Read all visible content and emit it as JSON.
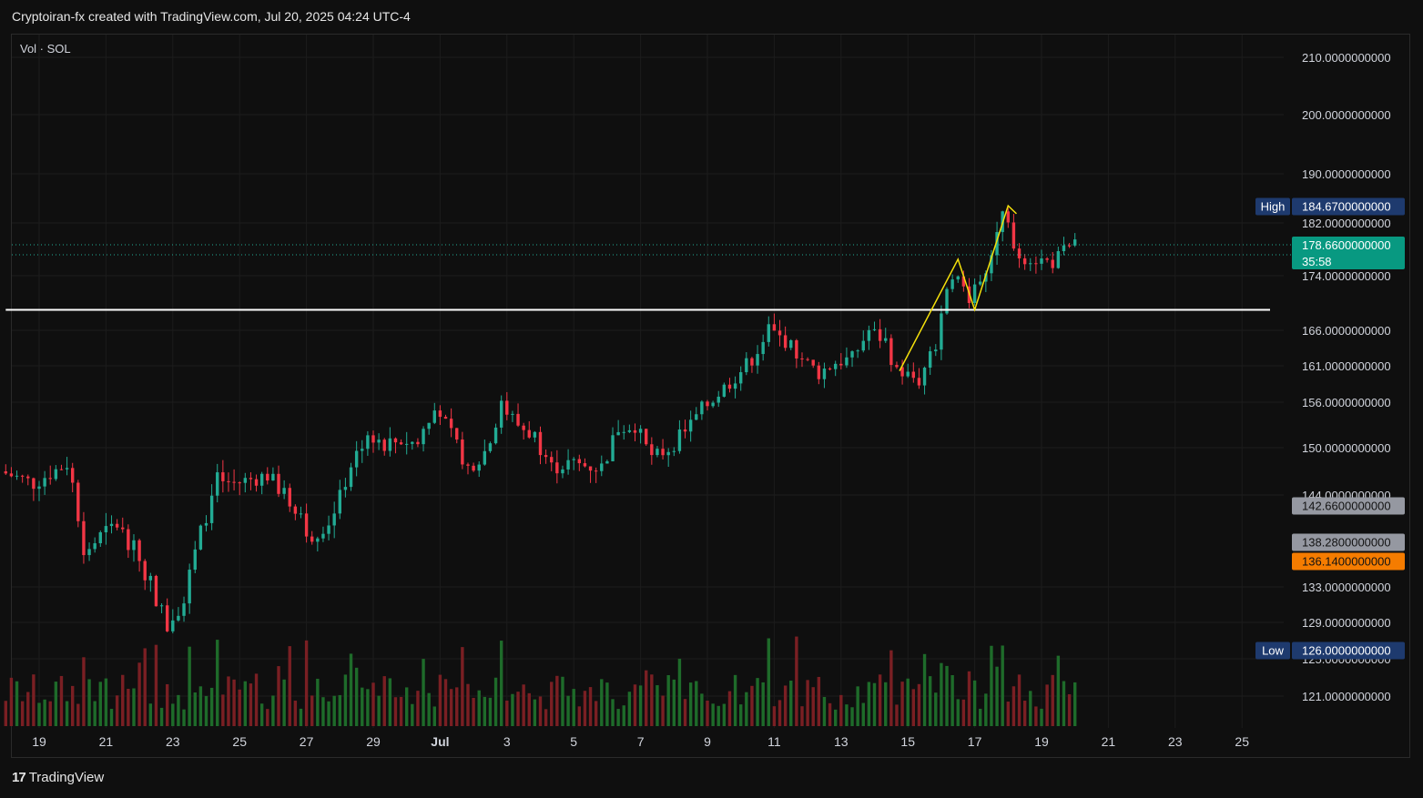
{
  "header": {
    "attribution": "Cryptoiran-fx created with TradingView.com, Jul 20, 2025 04:24 UTC-4"
  },
  "legend": {
    "label": "Vol · SOL"
  },
  "footer": {
    "brand": "TradingView"
  },
  "colors": {
    "up": "#22ab94",
    "down": "#f23645",
    "vol_up": "#1e6b2a",
    "vol_down": "#7a1f23",
    "annotation": "#f5e10b",
    "hline": "#ffffff",
    "price_tag": "#089981",
    "high_low_tag": "#1e3a6e",
    "grey_tag": "#9598a1",
    "orange_tag": "#f57c00"
  },
  "chart_data": {
    "type": "candlestick",
    "y_tick_labels": [
      "210.0000000000",
      "200.0000000000",
      "190.0000000000",
      "182.0000000000",
      "174.0000000000",
      "166.0000000000",
      "161.0000000000",
      "156.0000000000",
      "150.0000000000",
      "144.0000000000",
      "133.0000000000",
      "129.0000000000",
      "125.0000000000",
      "121.0000000000"
    ],
    "y_tick_values": [
      210,
      200,
      190,
      182,
      174,
      166,
      161,
      156,
      150,
      144,
      133,
      129,
      125,
      121
    ],
    "x_tick_labels": [
      "19",
      "21",
      "23",
      "25",
      "27",
      "29",
      "Jul",
      "3",
      "5",
      "7",
      "9",
      "11",
      "13",
      "15",
      "17",
      "19",
      "21",
      "23",
      "25"
    ],
    "x_tick_dates": [
      "2025-06-19",
      "2025-06-21",
      "2025-06-23",
      "2025-06-25",
      "2025-06-27",
      "2025-06-29",
      "2025-07-01",
      "2025-07-03",
      "2025-07-05",
      "2025-07-07",
      "2025-07-09",
      "2025-07-11",
      "2025-07-13",
      "2025-07-15",
      "2025-07-17",
      "2025-07-19",
      "2025-07-21",
      "2025-07-23",
      "2025-07-25"
    ],
    "price_tags": [
      {
        "label": "High",
        "value": "184.6700000000",
        "kind": "high"
      },
      {
        "label": "",
        "value": "178.6600000000",
        "kind": "last",
        "countdown": "35:58"
      },
      {
        "label": "",
        "value": "142.6600000000",
        "kind": "grey"
      },
      {
        "label": "",
        "value": "138.2800000000",
        "kind": "grey"
      },
      {
        "label": "",
        "value": "136.1400000000",
        "kind": "orange"
      },
      {
        "label": "Low",
        "value": "126.0000000000",
        "kind": "low"
      }
    ],
    "horizontal_line": {
      "value": 169.0,
      "from": "2025-06-18",
      "to": "2025-07-26"
    },
    "annotation_path": [
      [
        "2025-07-14T18:00",
        160.3
      ],
      [
        "2025-07-16T12:00",
        176.5
      ],
      [
        "2025-07-17T00:00",
        169.0
      ],
      [
        "2025-07-18T00:00",
        184.8
      ],
      [
        "2025-07-18T06:00",
        183.5
      ]
    ],
    "ohlc_anchors": [
      [
        "2025-06-18",
        147.0
      ],
      [
        "2025-06-19",
        145.5
      ],
      [
        "2025-06-20",
        148.0
      ],
      [
        "2025-06-20T06:00",
        144.0
      ],
      [
        "2025-06-20T12:00",
        137.0
      ],
      [
        "2025-06-21",
        139.0
      ],
      [
        "2025-06-21T12:00",
        140.5
      ],
      [
        "2025-06-22",
        137.5
      ],
      [
        "2025-06-22T12:00",
        133.5
      ],
      [
        "2025-06-23",
        128.5
      ],
      [
        "2025-06-23T12:00",
        132.0
      ],
      [
        "2025-06-24",
        139.5
      ],
      [
        "2025-06-24T12:00",
        146.0
      ],
      [
        "2025-06-25",
        145.5
      ],
      [
        "2025-06-26",
        146.5
      ],
      [
        "2025-06-26T12:00",
        144.0
      ],
      [
        "2025-06-27",
        142.0
      ],
      [
        "2025-06-27T06:00",
        139.0
      ],
      [
        "2025-06-28",
        141.5
      ],
      [
        "2025-06-28T12:00",
        148.0
      ],
      [
        "2025-06-29",
        152.0
      ],
      [
        "2025-06-29T12:00",
        150.5
      ],
      [
        "2025-06-30",
        151.0
      ],
      [
        "2025-06-30T12:00",
        150.5
      ],
      [
        "2025-07-01",
        156.0
      ],
      [
        "2025-07-01T12:00",
        151.5
      ],
      [
        "2025-07-02",
        147.5
      ],
      [
        "2025-07-02T12:00",
        149.5
      ],
      [
        "2025-07-03",
        155.5
      ],
      [
        "2025-07-03T12:00",
        153.0
      ],
      [
        "2025-07-04",
        151.5
      ],
      [
        "2025-07-04T12:00",
        147.5
      ],
      [
        "2025-07-05",
        148.0
      ],
      [
        "2025-07-06",
        147.5
      ],
      [
        "2025-07-06T12:00",
        152.5
      ],
      [
        "2025-07-07",
        153.0
      ],
      [
        "2025-07-07T12:00",
        148.5
      ],
      [
        "2025-07-08",
        150.0
      ],
      [
        "2025-07-08T12:00",
        152.0
      ],
      [
        "2025-07-09",
        155.0
      ],
      [
        "2025-07-10",
        159.5
      ],
      [
        "2025-07-10T12:00",
        162.0
      ],
      [
        "2025-07-11",
        166.0
      ],
      [
        "2025-07-11T12:00",
        164.5
      ],
      [
        "2025-07-12",
        162.0
      ],
      [
        "2025-07-12T12:00",
        160.0
      ],
      [
        "2025-07-13",
        161.5
      ],
      [
        "2025-07-13T12:00",
        162.0
      ],
      [
        "2025-07-14",
        166.0
      ],
      [
        "2025-07-14T12:00",
        164.5
      ],
      [
        "2025-07-14T18:00",
        161.0
      ],
      [
        "2025-07-15",
        160.0
      ],
      [
        "2025-07-15T12:00",
        159.0
      ],
      [
        "2025-07-16",
        164.0
      ],
      [
        "2025-07-16T12:00",
        174.5
      ],
      [
        "2025-07-17",
        171.0
      ],
      [
        "2025-07-17T12:00",
        175.0
      ],
      [
        "2025-07-18",
        183.5
      ],
      [
        "2025-07-18T06:00",
        180.0
      ],
      [
        "2025-07-18T12:00",
        177.0
      ],
      [
        "2025-07-19",
        176.5
      ],
      [
        "2025-07-19T12:00",
        176.0
      ],
      [
        "2025-07-20",
        178.66
      ]
    ]
  }
}
